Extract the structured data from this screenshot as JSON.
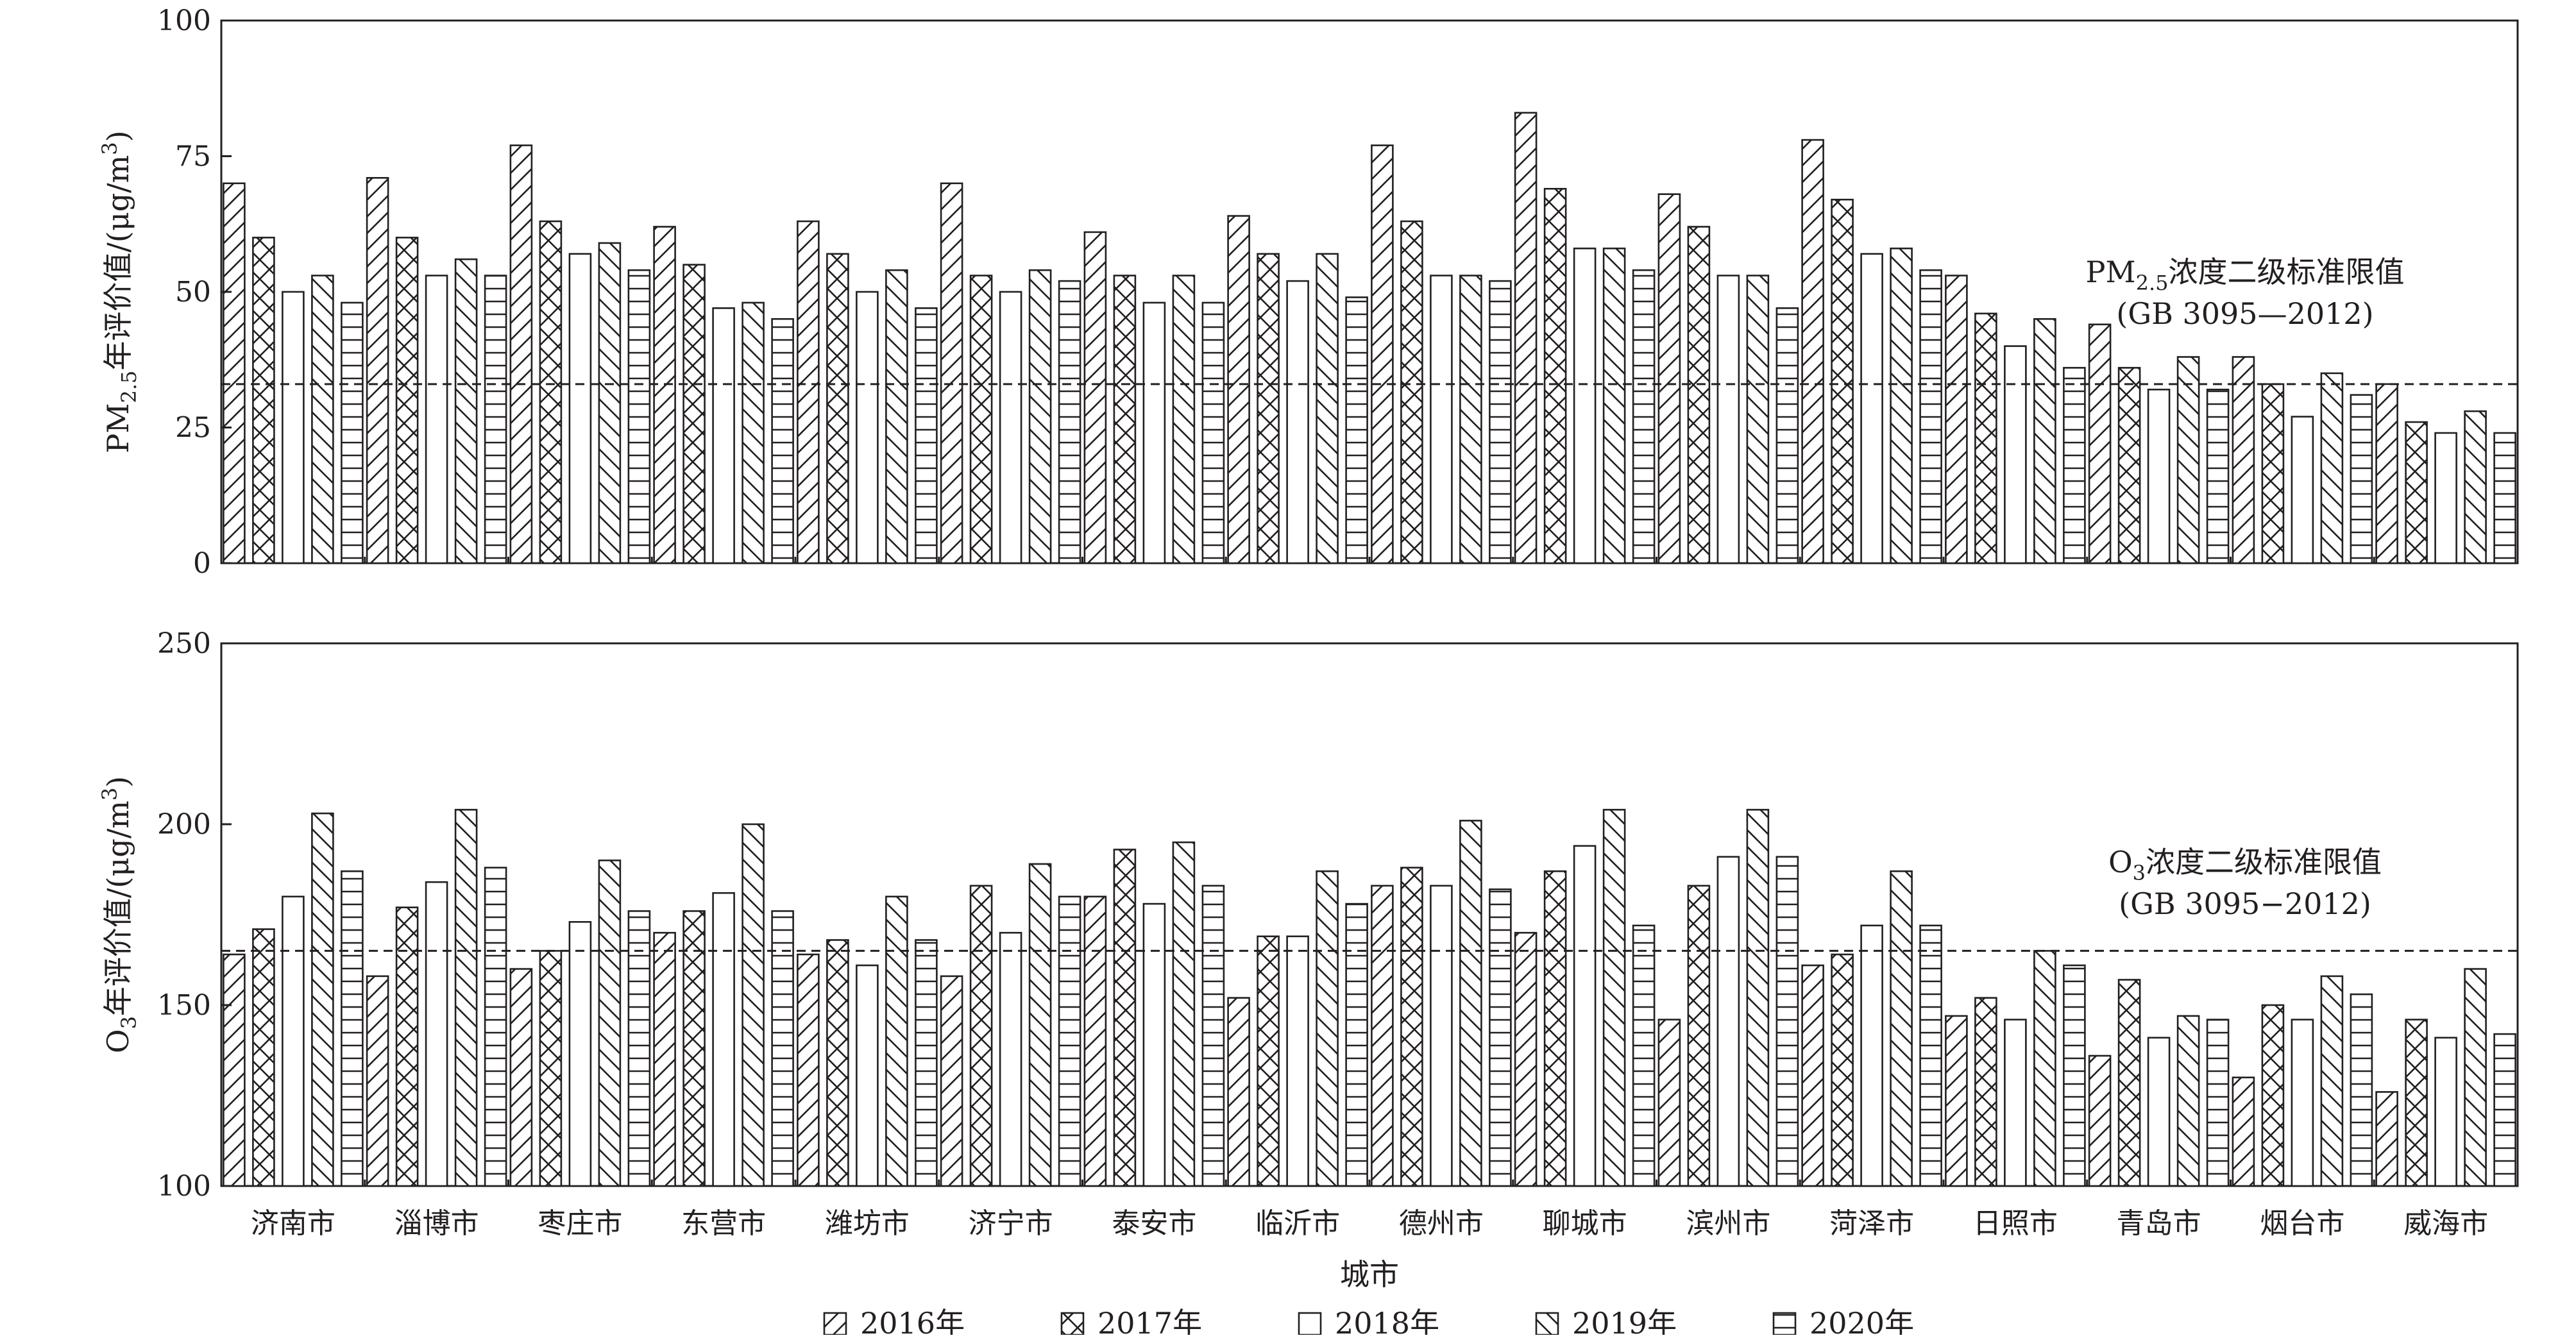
{
  "chart_data": [
    {
      "type": "bar",
      "ylabel": "PM2.5年评价值/(μg/m3)",
      "ylabel_parts": {
        "main": "PM",
        "sub": "2.5",
        "mid": "年评价值/(μg/m",
        "sup": "3",
        "end": ")"
      },
      "ylim": [
        0,
        100
      ],
      "yticks": [
        "0",
        "25",
        "50",
        "75",
        "100"
      ],
      "yticks_values": [
        0,
        25,
        50,
        75,
        100
      ],
      "categories": [
        "济南市",
        "淄博市",
        "枣庄市",
        "东营市",
        "潍坊市",
        "济宁市",
        "泰安市",
        "临沂市",
        "德州市",
        "聊城市",
        "滨州市",
        "菏泽市",
        "日照市",
        "青岛市",
        "烟台市",
        "威海市"
      ],
      "series": [
        {
          "name": "2016年",
          "values": [
            70,
            71,
            77,
            62,
            63,
            70,
            61,
            64,
            77,
            83,
            68,
            78,
            53,
            44,
            38,
            33
          ]
        },
        {
          "name": "2017年",
          "values": [
            60,
            60,
            63,
            55,
            57,
            53,
            53,
            57,
            63,
            69,
            62,
            67,
            46,
            36,
            33,
            26
          ]
        },
        {
          "name": "2018年",
          "values": [
            50,
            53,
            57,
            47,
            50,
            50,
            48,
            52,
            53,
            58,
            53,
            57,
            40,
            32,
            27,
            24
          ]
        },
        {
          "name": "2019年",
          "values": [
            53,
            56,
            59,
            48,
            54,
            54,
            53,
            57,
            53,
            58,
            53,
            58,
            45,
            38,
            35,
            28
          ]
        },
        {
          "name": "2020年",
          "values": [
            48,
            53,
            54,
            45,
            47,
            52,
            48,
            49,
            52,
            54,
            47,
            54,
            36,
            32,
            31,
            24
          ]
        }
      ],
      "reference_line": {
        "value": 33,
        "style": "dashed"
      },
      "annotation": {
        "line1_main": "PM",
        "line1_sub": "2.5",
        "line1_end": "浓度二级标准限值",
        "line2": "(GB 3095—2012)"
      },
      "grid": false
    },
    {
      "type": "bar",
      "ylabel": "O3年评价值/(μg/m3)",
      "ylabel_parts": {
        "main": "O",
        "sub": "3",
        "mid": "年评价值/(μg/m",
        "sup": "3",
        "end": ")"
      },
      "ylim": [
        100,
        250
      ],
      "yticks": [
        "100",
        "150",
        "200",
        "250"
      ],
      "yticks_values": [
        100,
        150,
        200,
        250
      ],
      "categories": [
        "济南市",
        "淄博市",
        "枣庄市",
        "东营市",
        "潍坊市",
        "济宁市",
        "泰安市",
        "临沂市",
        "德州市",
        "聊城市",
        "滨州市",
        "菏泽市",
        "日照市",
        "青岛市",
        "烟台市",
        "威海市"
      ],
      "series": [
        {
          "name": "2016年",
          "values": [
            164,
            158,
            160,
            170,
            164,
            158,
            180,
            152,
            183,
            170,
            146,
            161,
            147,
            136,
            130,
            126
          ]
        },
        {
          "name": "2017年",
          "values": [
            171,
            177,
            165,
            176,
            168,
            183,
            193,
            169,
            188,
            187,
            183,
            164,
            152,
            157,
            150,
            146
          ]
        },
        {
          "name": "2018年",
          "values": [
            180,
            184,
            173,
            181,
            161,
            170,
            178,
            169,
            183,
            194,
            191,
            172,
            146,
            141,
            146,
            141
          ]
        },
        {
          "name": "2019年",
          "values": [
            203,
            204,
            190,
            200,
            180,
            189,
            195,
            187,
            201,
            204,
            204,
            187,
            165,
            147,
            158,
            160
          ]
        },
        {
          "name": "2020年",
          "values": [
            187,
            188,
            176,
            176,
            168,
            180,
            183,
            178,
            182,
            172,
            191,
            172,
            161,
            146,
            153,
            142
          ]
        }
      ],
      "reference_line": {
        "value": 165,
        "style": "dashed"
      },
      "annotation": {
        "line1_main": "O",
        "line1_sub": "3",
        "line1_end": "浓度二级标准限值",
        "line2": "(GB 3095−2012)"
      },
      "grid": false
    }
  ],
  "xlabel": "城市",
  "legend": {
    "position": "bottom",
    "entries": [
      {
        "label": "2016年",
        "pattern": "diag-fwd"
      },
      {
        "label": "2017年",
        "pattern": "cross"
      },
      {
        "label": "2018年",
        "pattern": "none"
      },
      {
        "label": "2019年",
        "pattern": "diag-back"
      },
      {
        "label": "2020年",
        "pattern": "horizontal"
      }
    ]
  },
  "colors": {
    "ink": "#231f20",
    "fill": "#ffffff"
  }
}
